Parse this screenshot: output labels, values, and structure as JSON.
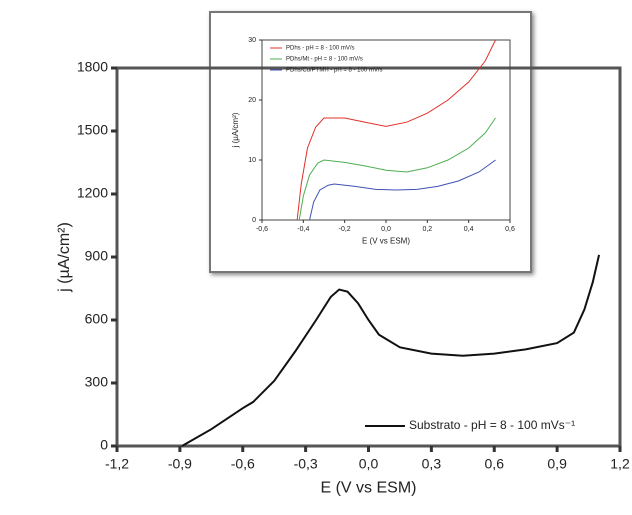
{
  "chart_data": [
    {
      "type": "line",
      "xlabel": "E (V vs ESM)",
      "ylabel": "j (µA/cm²)",
      "xlim": [
        -1.2,
        1.2
      ],
      "xticks": [
        {
          "value": -1.2,
          "label": "-1,2"
        },
        {
          "value": -0.9,
          "label": "-0,9"
        },
        {
          "value": -0.6,
          "label": "-0,6"
        },
        {
          "value": -0.3,
          "label": "-0,3"
        },
        {
          "value": 0,
          "label": "0,0"
        },
        {
          "value": 0.3,
          "label": "0,3"
        },
        {
          "value": 0.6,
          "label": "0,6"
        },
        {
          "value": 0.9,
          "label": "0,9"
        },
        {
          "value": 1.2,
          "label": "1,2"
        }
      ],
      "ylim": [
        0,
        1800
      ],
      "yticks": [
        0,
        300,
        600,
        900,
        1200,
        1500,
        1800
      ],
      "legend": "lower right",
      "series": [
        {
          "name": "Substrato - pH = 8 - 100 mVs⁻¹",
          "color": "#111111",
          "x": [
            -0.89,
            -0.75,
            -0.6,
            -0.55,
            -0.45,
            -0.35,
            -0.25,
            -0.18,
            -0.14,
            -0.1,
            -0.05,
            0,
            0.05,
            0.15,
            0.3,
            0.45,
            0.6,
            0.75,
            0.9,
            0.98,
            1.03,
            1.07,
            1.1
          ],
          "values": [
            0,
            80,
            180,
            210,
            310,
            450,
            600,
            710,
            745,
            735,
            680,
            600,
            530,
            470,
            440,
            430,
            440,
            460,
            490,
            540,
            650,
            780,
            910
          ]
        }
      ]
    },
    {
      "type": "line",
      "xlabel": "E (V vs ESM)",
      "ylabel": "j (µA/cm²)",
      "xlim": [
        -0.6,
        0.6
      ],
      "xticks": [
        {
          "value": -0.6,
          "label": "-0,6"
        },
        {
          "value": -0.4,
          "label": "-0,4"
        },
        {
          "value": -0.2,
          "label": "-0,2"
        },
        {
          "value": 0,
          "label": "0,0"
        },
        {
          "value": 0.2,
          "label": "0,2"
        },
        {
          "value": 0.4,
          "label": "0,4"
        },
        {
          "value": 0.6,
          "label": "0,6"
        }
      ],
      "ylim": [
        0,
        30
      ],
      "yticks": [
        0,
        10,
        20,
        30
      ],
      "legend": "upper left",
      "series": [
        {
          "name": "PDhs - pH = 8 - 100 mV/s",
          "color": "#e0302a",
          "x": [
            -0.43,
            -0.41,
            -0.38,
            -0.34,
            -0.3,
            -0.2,
            -0.1,
            0,
            0.1,
            0.2,
            0.3,
            0.4,
            0.48,
            0.53
          ],
          "values": [
            0,
            6,
            12,
            15.5,
            17,
            17,
            16.3,
            15.6,
            16.3,
            17.8,
            20,
            23,
            26.5,
            30
          ]
        },
        {
          "name": "PDhs/Mt - pH = 8 - 100 mV/s",
          "color": "#4caf50",
          "x": [
            -0.42,
            -0.4,
            -0.37,
            -0.33,
            -0.3,
            -0.2,
            -0.1,
            0,
            0.1,
            0.2,
            0.3,
            0.4,
            0.48,
            0.53
          ],
          "values": [
            0,
            4,
            7.5,
            9.5,
            10,
            9.6,
            9,
            8.3,
            8,
            8.7,
            10,
            12,
            14.5,
            17
          ]
        },
        {
          "name": "PDhs/Cu/PTMH - pH = 8 - 100 mV/s",
          "color": "#3f51b5",
          "x": [
            -0.37,
            -0.35,
            -0.32,
            -0.28,
            -0.25,
            -0.15,
            -0.05,
            0.05,
            0.15,
            0.25,
            0.35,
            0.45,
            0.53
          ],
          "values": [
            0,
            3,
            5,
            5.8,
            6,
            5.6,
            5.1,
            5,
            5.1,
            5.6,
            6.5,
            8,
            10
          ]
        }
      ]
    }
  ]
}
